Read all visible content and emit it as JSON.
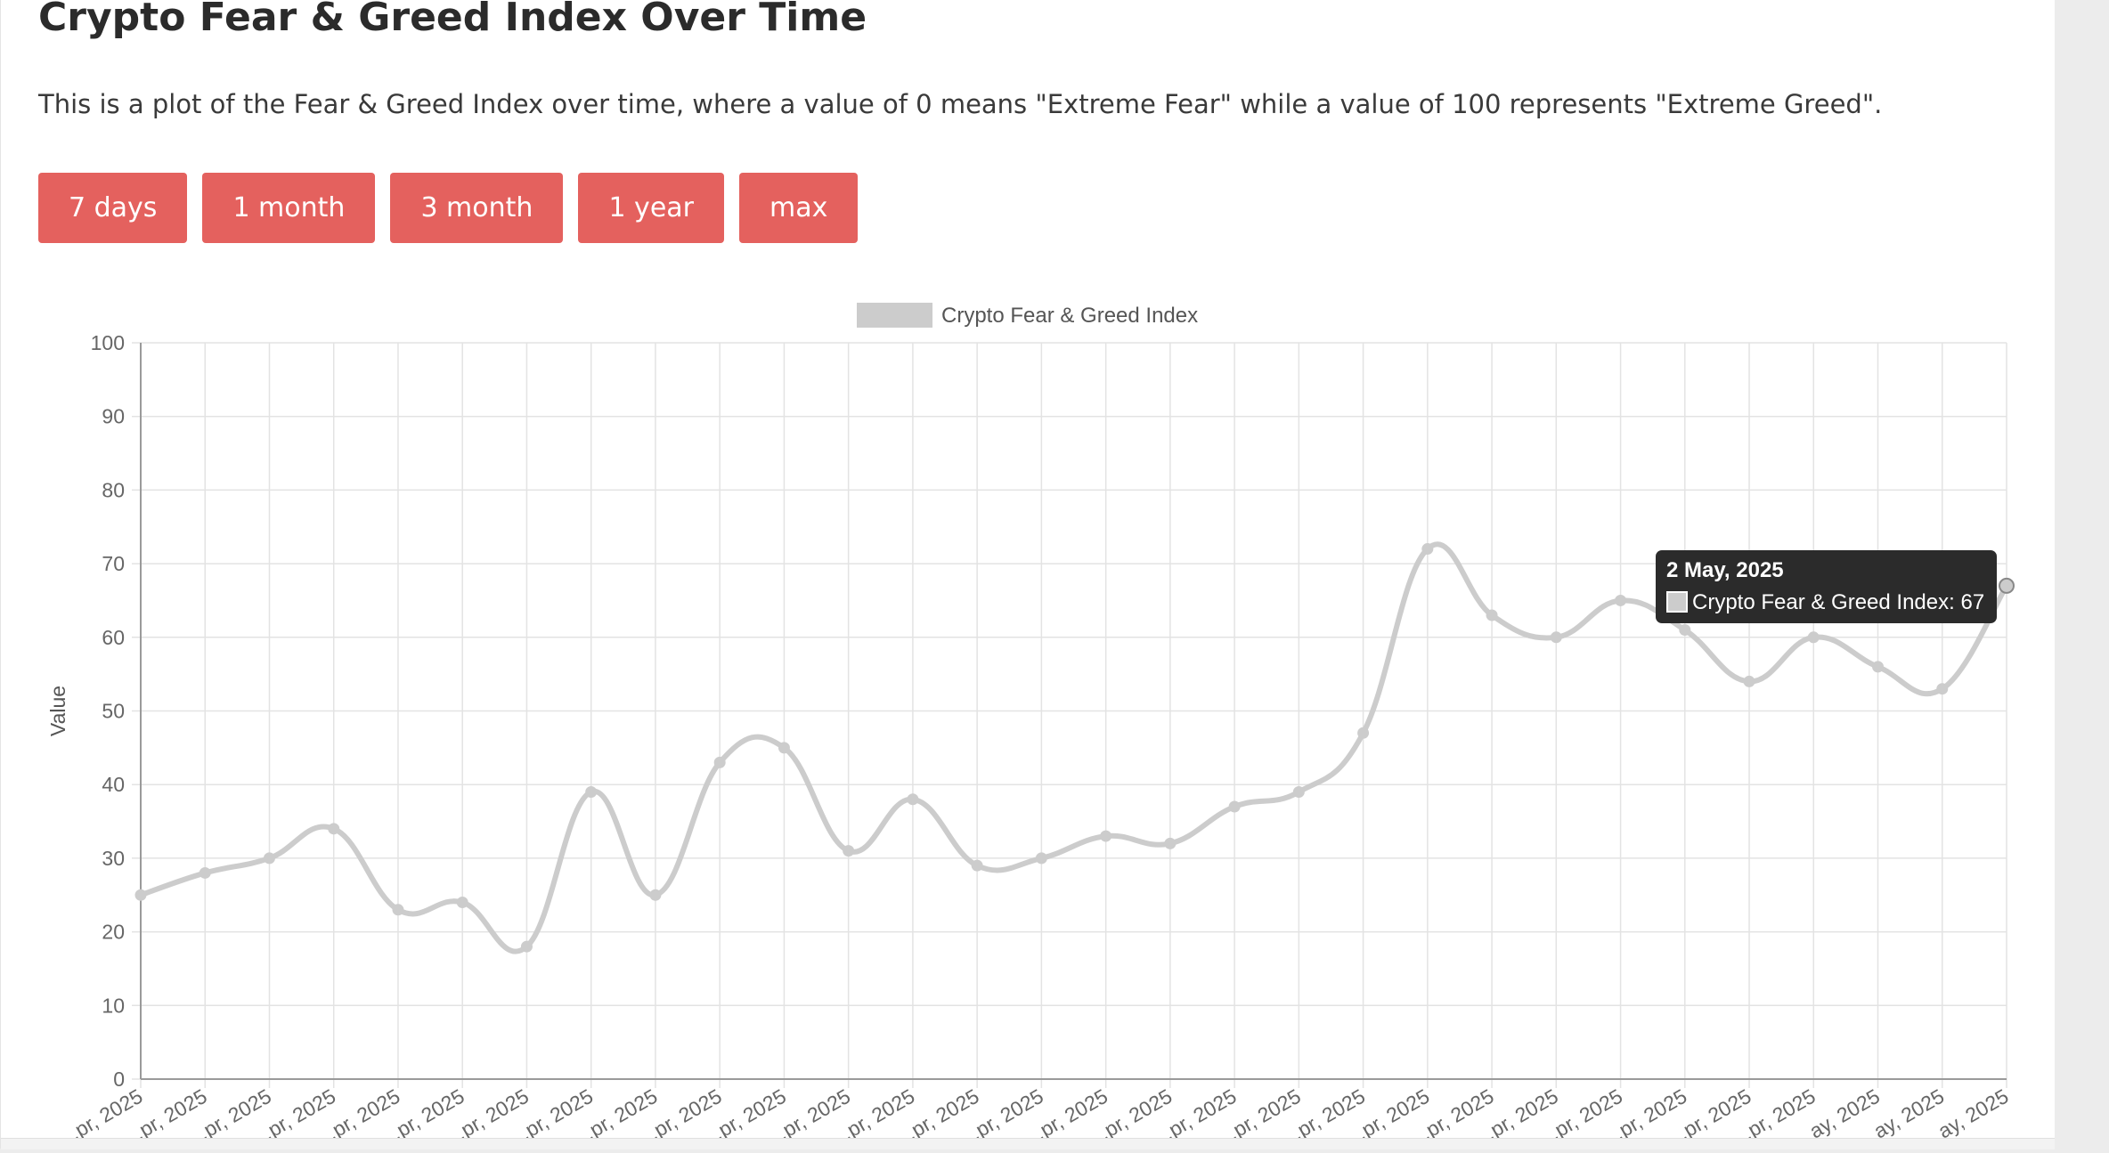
{
  "page": {
    "title": "Crypto Fear & Greed Index Over Time",
    "description": "This is a plot of the Fear & Greed Index over time, where a value of 0 means \"Extreme Fear\" while a value of 100 represents \"Extreme Greed\"."
  },
  "range_buttons": {
    "days7": "7 days",
    "month1": "1 month",
    "month3": "3 month",
    "year1": "1 year",
    "max": "max"
  },
  "colors": {
    "button": "#e4615e",
    "line": "#cccccc",
    "grid": "#e3e3e3",
    "tooltip_bg": "#2b2b2b"
  },
  "tooltip": {
    "title": "2 May, 2025",
    "label": "Crypto Fear & Greed Index: 67"
  },
  "chart_data": {
    "type": "line",
    "title": "",
    "legend": "Crypto Fear & Greed Index",
    "legend_position": "top",
    "ylabel": "Value",
    "xlabel": "",
    "ylim": [
      0,
      100
    ],
    "y_ticks": [
      0,
      10,
      20,
      30,
      40,
      50,
      60,
      70,
      80,
      90,
      100
    ],
    "grid": true,
    "x_tick_labels": [
      "...pr, 2025",
      "...pr, 2025",
      "...pr, 2025",
      "...pr, 2025",
      "...pr, 2025",
      "...pr, 2025",
      "...pr, 2025",
      "...pr, 2025",
      "...pr, 2025",
      "...pr, 2025",
      "...pr, 2025",
      "...pr, 2025",
      "...pr, 2025",
      "...pr, 2025",
      "...pr, 2025",
      "...pr, 2025",
      "...pr, 2025",
      "...pr, 2025",
      "...pr, 2025",
      "...pr, 2025",
      "...pr, 2025",
      "...pr, 2025",
      "...pr, 2025",
      "...pr, 2025",
      "...pr, 2025",
      "...pr, 2025",
      "...pr, 2025",
      "...ay, 2025",
      "...ay, 2025",
      "...ay, 2025"
    ],
    "series": [
      {
        "name": "Crypto Fear & Greed Index",
        "values": [
          25,
          28,
          30,
          34,
          23,
          24,
          18,
          39,
          25,
          43,
          45,
          31,
          38,
          29,
          30,
          33,
          32,
          37,
          39,
          47,
          72,
          63,
          60,
          65,
          61,
          54,
          60,
          56,
          53,
          67
        ]
      }
    ]
  }
}
